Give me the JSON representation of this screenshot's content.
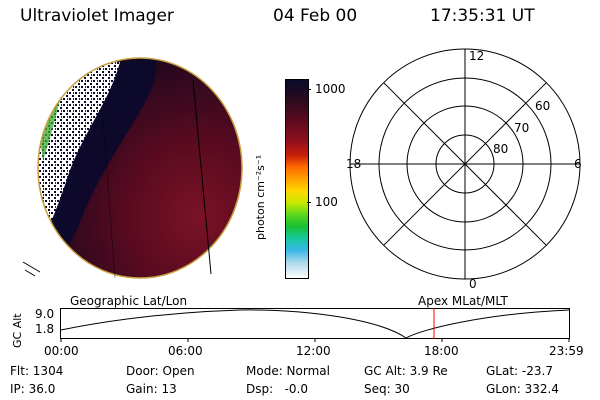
{
  "header": {
    "instrument": "Ultraviolet Imager",
    "date": "04 Feb 00",
    "time": "17:35:31 UT"
  },
  "colorbar": {
    "unit_label": "photon cm⁻²s⁻¹",
    "tick_labels": [
      "1000",
      "100"
    ],
    "scale": "log",
    "colors_top_to_bottom": [
      "#0a0a2a",
      "#2a0a1e",
      "#5a0a1e",
      "#8a0f1e",
      "#c81e0a",
      "#ff6a00",
      "#ffa000",
      "#ffd800",
      "#c8e800",
      "#5ad81e",
      "#18c030",
      "#18c8a0",
      "#38b8e8",
      "#a8d8e8",
      "#ffffff"
    ]
  },
  "polar_plot": {
    "clock_labels": [
      "12",
      "18",
      "6",
      "0"
    ],
    "latitude_labels": [
      "60",
      "70",
      "80"
    ]
  },
  "timeline": {
    "left_label": "Geographic Lat/Lon",
    "right_label": "Apex  MLat/MLT",
    "yaxis_label": "GC Alt",
    "y_ticks": [
      "9.0",
      "1.8"
    ],
    "x_ticks": [
      "00:00",
      "06:00",
      "12:00",
      "18:00",
      "23:59"
    ],
    "current_time_marker_color": "#ff0000"
  },
  "status": {
    "col1": [
      {
        "text": "Flt: 1304"
      },
      {
        "text": "IP: 36.0"
      }
    ],
    "col2": [
      {
        "text": "Door: Open"
      },
      {
        "text": "Gain: 13"
      }
    ],
    "col3": [
      {
        "text": "Mode: Normal"
      },
      {
        "text": "Dsp:   -0.0"
      }
    ],
    "col4": [
      {
        "text": "GC Alt: 3.9 Re"
      },
      {
        "text": "Seq: 30"
      }
    ],
    "col5": [
      {
        "text": "GLat: -23.7"
      },
      {
        "text": "GLon: 332.4"
      }
    ]
  }
}
